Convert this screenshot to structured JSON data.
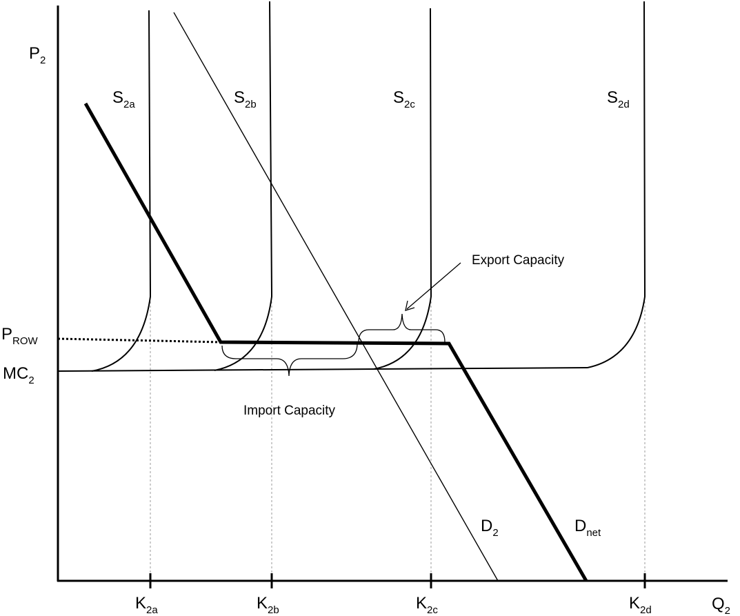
{
  "axes": {
    "y_label": {
      "main": "P",
      "sub": "2"
    },
    "x_label": {
      "main": "Q",
      "sub": "2"
    }
  },
  "supply_curves": [
    {
      "main": "S",
      "sub": "2a"
    },
    {
      "main": "S",
      "sub": "2b"
    },
    {
      "main": "S",
      "sub": "2c"
    },
    {
      "main": "S",
      "sub": "2d"
    }
  ],
  "capacity_ticks": [
    {
      "main": "K",
      "sub": "2a"
    },
    {
      "main": "K",
      "sub": "2b"
    },
    {
      "main": "K",
      "sub": "2c"
    },
    {
      "main": "K",
      "sub": "2d"
    }
  ],
  "price_labels": {
    "p_row": {
      "main": "P",
      "sub": "ROW"
    },
    "mc": {
      "main": "MC",
      "sub": "2"
    }
  },
  "demand_labels": {
    "d2": {
      "main": "D",
      "sub": "2"
    },
    "dnet": {
      "main": "D",
      "sub": "net"
    }
  },
  "annotations": {
    "export": "Export Capacity",
    "import": "Import Capacity"
  },
  "colors": {
    "line": "#000000",
    "guide": "#9a9a9a"
  }
}
